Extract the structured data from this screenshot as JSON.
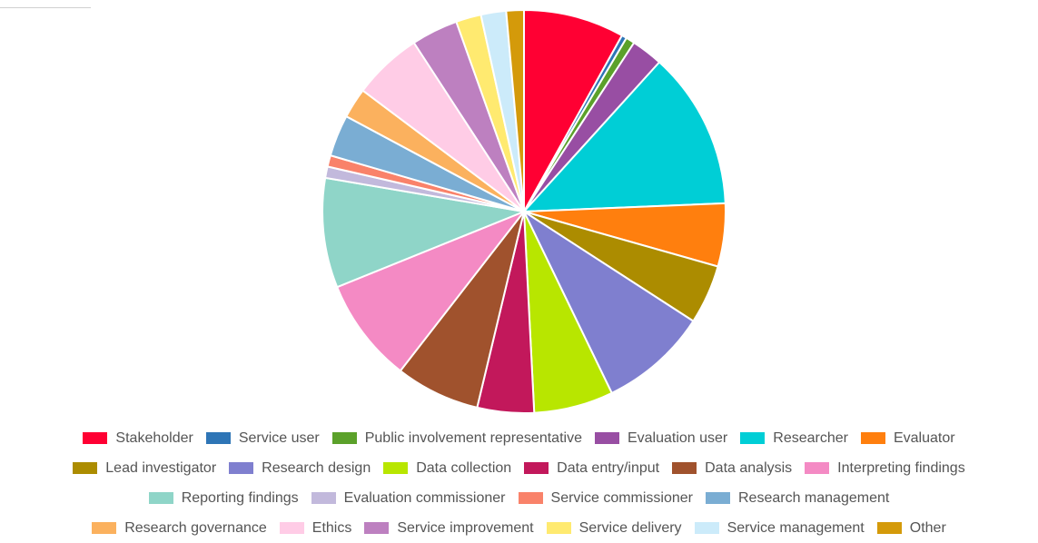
{
  "chart_data": {
    "type": "pie",
    "title": "",
    "legend_position": "bottom",
    "series": [
      {
        "name": "Stakeholder",
        "value": 8.0,
        "color": "#FF0033"
      },
      {
        "name": "Service user",
        "value": 0.4,
        "color": "#2E75B6"
      },
      {
        "name": "Public involvement representative",
        "value": 0.7,
        "color": "#5BA12A"
      },
      {
        "name": "Evaluation user",
        "value": 2.5,
        "color": "#984EA3"
      },
      {
        "name": "Researcher",
        "value": 12.5,
        "color": "#00CED6"
      },
      {
        "name": "Evaluator",
        "value": 5.0,
        "color": "#FF7F0E"
      },
      {
        "name": "Lead investigator",
        "value": 4.7,
        "color": "#AC8C00"
      },
      {
        "name": "Research design",
        "value": 8.6,
        "color": "#7F7FCF"
      },
      {
        "name": "Data collection",
        "value": 6.3,
        "color": "#B8E600"
      },
      {
        "name": "Data entry/input",
        "value": 4.5,
        "color": "#C2185B"
      },
      {
        "name": "Data analysis",
        "value": 6.7,
        "color": "#A0522D"
      },
      {
        "name": "Interpreting findings",
        "value": 8.3,
        "color": "#F48AC4"
      },
      {
        "name": "Reporting findings",
        "value": 8.7,
        "color": "#8FD5C8"
      },
      {
        "name": "Evaluation commissioner",
        "value": 0.9,
        "color": "#C2B9DC"
      },
      {
        "name": "Service commissioner",
        "value": 0.9,
        "color": "#F9826A"
      },
      {
        "name": "Research management",
        "value": 3.3,
        "color": "#7AADD3"
      },
      {
        "name": "Research governance",
        "value": 2.4,
        "color": "#FBB15E"
      },
      {
        "name": "Ethics",
        "value": 5.5,
        "color": "#FFCCE6"
      },
      {
        "name": "Service improvement",
        "value": 3.7,
        "color": "#BD80C0"
      },
      {
        "name": "Service delivery",
        "value": 2.0,
        "color": "#FFEA70"
      },
      {
        "name": "Service management",
        "value": 2.0,
        "color": "#CCEBFA"
      },
      {
        "name": "Other",
        "value": 1.4,
        "color": "#D49A0A"
      }
    ]
  }
}
